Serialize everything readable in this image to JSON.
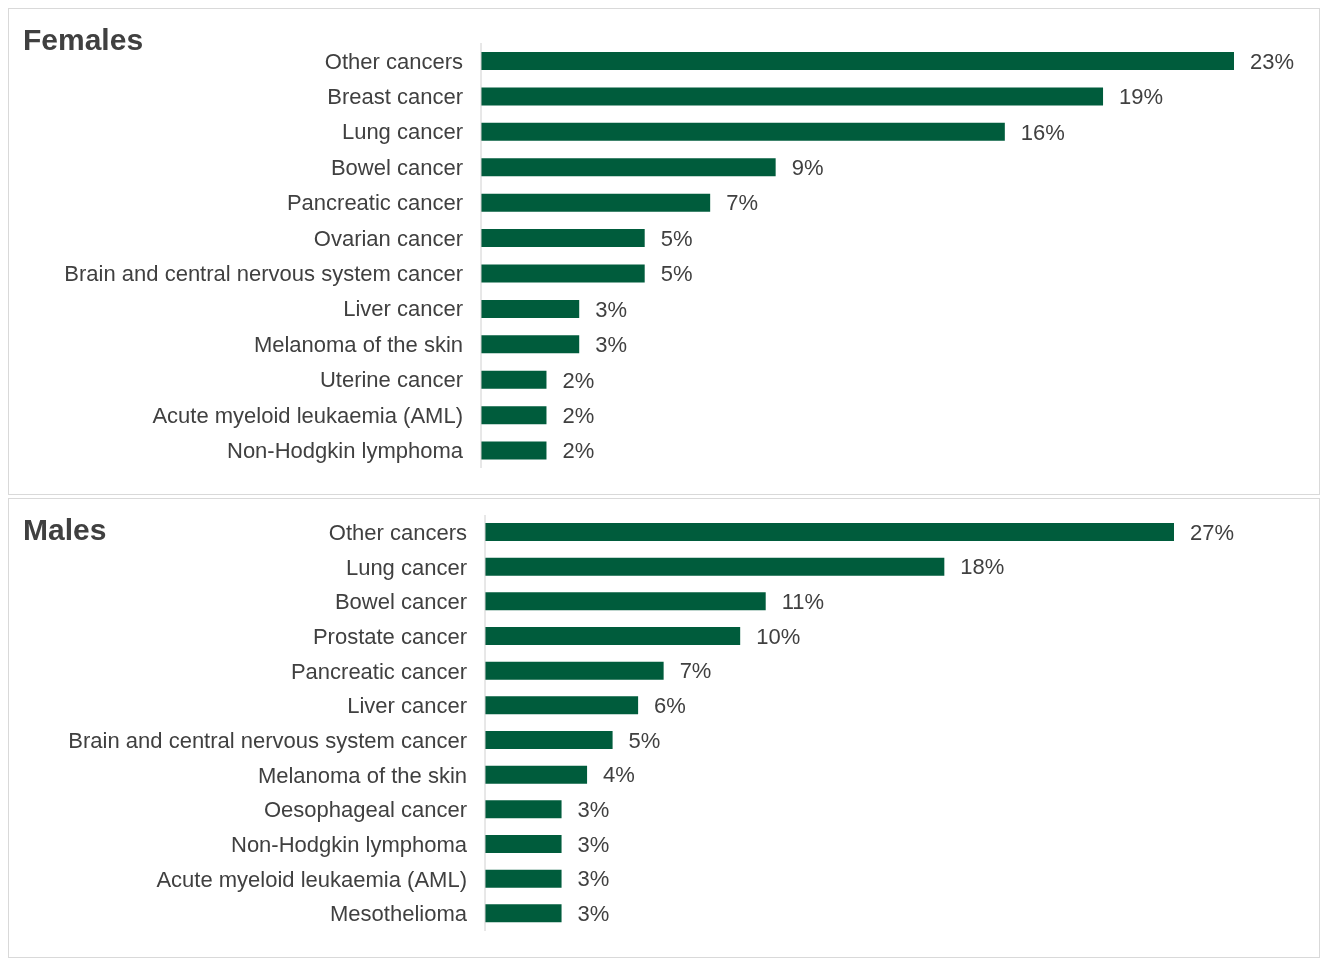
{
  "chart_data": [
    {
      "type": "bar",
      "orientation": "horizontal",
      "title": "Females",
      "categories": [
        "Other cancers",
        "Breast cancer",
        "Lung cancer",
        "Bowel cancer",
        "Pancreatic cancer",
        "Ovarian cancer",
        "Brain and central nervous system cancer",
        "Liver cancer",
        "Melanoma of the skin",
        "Uterine cancer",
        "Acute myeloid leukaemia (AML)",
        "Non-Hodgkin lymphoma"
      ],
      "values": [
        23,
        19,
        16,
        9,
        7,
        5,
        5,
        3,
        3,
        2,
        2,
        2
      ],
      "value_labels": [
        "23%",
        "19%",
        "16%",
        "9%",
        "7%",
        "5%",
        "5%",
        "3%",
        "3%",
        "2%",
        "2%",
        "2%"
      ],
      "color": "#005c3c",
      "grid": false,
      "legend": false
    },
    {
      "type": "bar",
      "orientation": "horizontal",
      "title": "Males",
      "categories": [
        "Other cancers",
        "Lung cancer",
        "Bowel cancer",
        "Prostate cancer",
        "Pancreatic cancer",
        "Liver cancer",
        "Brain and central nervous system cancer",
        "Melanoma of the skin",
        "Oesophageal cancer",
        "Non-Hodgkin lymphoma",
        "Acute myeloid leukaemia (AML)",
        "Mesothelioma"
      ],
      "values": [
        27,
        18,
        11,
        10,
        7,
        6,
        5,
        4,
        3,
        3,
        3,
        3
      ],
      "value_labels": [
        "27%",
        "18%",
        "11%",
        "10%",
        "7%",
        "6%",
        "5%",
        "4%",
        "3%",
        "3%",
        "3%",
        "3%"
      ],
      "color": "#005c3c",
      "grid": false,
      "legend": false
    }
  ]
}
